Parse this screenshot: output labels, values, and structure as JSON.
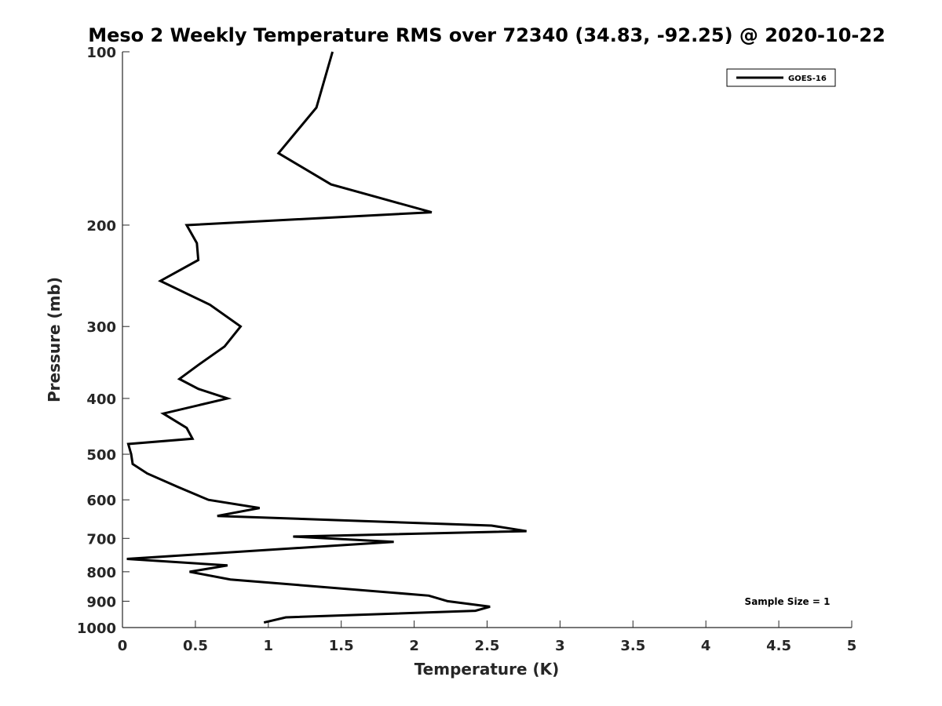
{
  "chart_data": {
    "type": "line",
    "title": "Meso 2 Weekly Temperature RMS over 72340 (34.83, -92.25) @ 2020-10-22",
    "xlabel": "Temperature (K)",
    "ylabel": "Pressure (mb)",
    "xlim": [
      0,
      5
    ],
    "ylim": [
      1000,
      100
    ],
    "y_scale": "log",
    "grid": false,
    "legend_position": "top-right",
    "x_ticks": [
      "0",
      "0.5",
      "1",
      "1.5",
      "2",
      "2.5",
      "3",
      "3.5",
      "4",
      "4.5",
      "5"
    ],
    "y_ticks": [
      "100",
      "200",
      "300",
      "400",
      "500",
      "600",
      "700",
      "800",
      "900",
      "1000"
    ],
    "series": [
      {
        "name": "GOES-16",
        "color": "#000000",
        "points": [
          [
            1.44,
            100
          ],
          [
            1.33,
            125
          ],
          [
            1.07,
            150
          ],
          [
            1.43,
            170
          ],
          [
            2.12,
            190
          ],
          [
            0.44,
            200
          ],
          [
            0.51,
            215
          ],
          [
            0.52,
            230
          ],
          [
            0.26,
            250
          ],
          [
            0.6,
            275
          ],
          [
            0.81,
            300
          ],
          [
            0.7,
            325
          ],
          [
            0.52,
            350
          ],
          [
            0.39,
            370
          ],
          [
            0.52,
            385
          ],
          [
            0.72,
            400
          ],
          [
            0.28,
            425
          ],
          [
            0.44,
            450
          ],
          [
            0.48,
            470
          ],
          [
            0.04,
            480
          ],
          [
            0.06,
            500
          ],
          [
            0.07,
            520
          ],
          [
            0.17,
            540
          ],
          [
            0.38,
            570
          ],
          [
            0.59,
            600
          ],
          [
            0.94,
            620
          ],
          [
            0.65,
            640
          ],
          [
            2.53,
            665
          ],
          [
            2.77,
            680
          ],
          [
            1.17,
            695
          ],
          [
            1.86,
            710
          ],
          [
            0.03,
            760
          ],
          [
            0.72,
            780
          ],
          [
            0.46,
            800
          ],
          [
            0.74,
            825
          ],
          [
            2.1,
            880
          ],
          [
            2.23,
            900
          ],
          [
            2.52,
            920
          ],
          [
            2.42,
            935
          ],
          [
            1.12,
            960
          ],
          [
            0.97,
            980
          ]
        ]
      }
    ],
    "annotation": "Sample Size = 1"
  }
}
